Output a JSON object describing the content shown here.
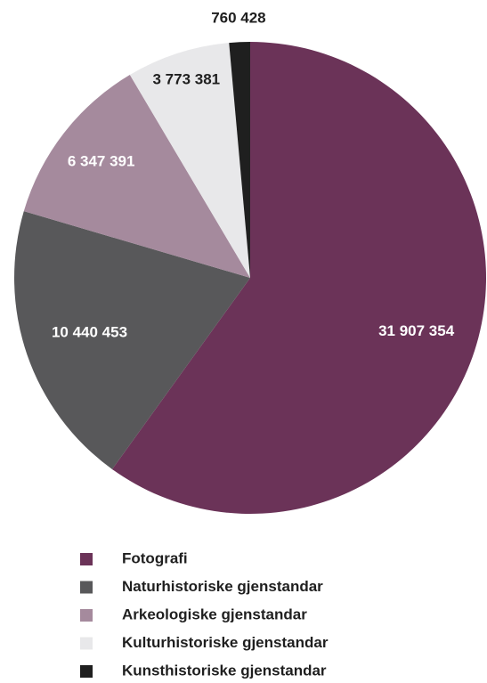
{
  "chart_data": {
    "type": "pie",
    "categories": [
      "Fotografi",
      "Naturhistoriske gjenstandar",
      "Arkeologiske gjenstandar",
      "Kulturhistoriske gjenstandar",
      "Kunsthistoriske gjenstandar"
    ],
    "values": [
      31907354,
      10440453,
      6347391,
      3773381,
      760428
    ],
    "value_labels": [
      "31 907 354",
      "10 440 453",
      "6 347 391",
      "3 773 381",
      "760 428"
    ],
    "colors": [
      "#6b3358",
      "#58585a",
      "#a58a9d",
      "#e8e8ea",
      "#1f1f1f"
    ]
  }
}
